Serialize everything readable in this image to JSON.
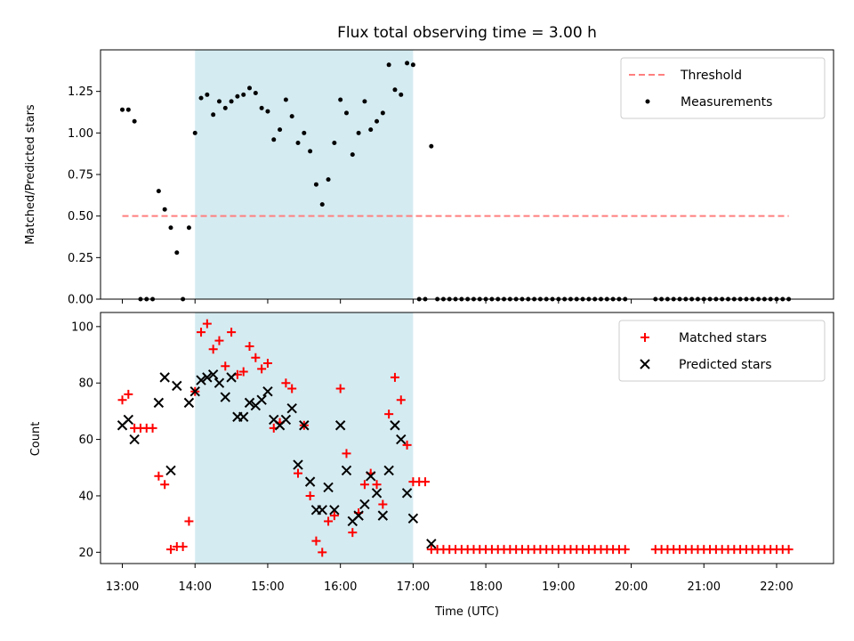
{
  "chart_data": [
    {
      "type": "scatter",
      "title": "Flux total observing time = 3.00 h",
      "xlabel": "",
      "ylabel": "Matched/Predicted stars",
      "xlim": [
        "12:42",
        "22:47"
      ],
      "ylim": [
        0,
        1.5
      ],
      "yticks": [
        "0.00",
        "0.25",
        "0.50",
        "0.75",
        "1.00",
        "1.25"
      ],
      "shaded_region": {
        "start": "14:00",
        "end": "17:00",
        "color": "#d4ebf1"
      },
      "threshold": {
        "name": "Threshold",
        "value": 0.5,
        "x_start": "13:00",
        "x_end": "22:10",
        "color": "#ff7f7f",
        "style": "dashed"
      },
      "series": [
        {
          "name": "Measurements",
          "color": "#000000",
          "marker": "dot",
          "points": [
            [
              "13:00",
              1.14
            ],
            [
              "13:05",
              1.14
            ],
            [
              "13:10",
              1.07
            ],
            [
              "13:15",
              0
            ],
            [
              "13:20",
              0
            ],
            [
              "13:25",
              0
            ],
            [
              "13:30",
              0.65
            ],
            [
              "13:35",
              0.54
            ],
            [
              "13:40",
              0.43
            ],
            [
              "13:45",
              0.28
            ],
            [
              "13:50",
              0
            ],
            [
              "13:55",
              0.43
            ],
            [
              "14:00",
              1.0
            ],
            [
              "14:05",
              1.21
            ],
            [
              "14:10",
              1.23
            ],
            [
              "14:15",
              1.11
            ],
            [
              "14:20",
              1.19
            ],
            [
              "14:25",
              1.15
            ],
            [
              "14:30",
              1.19
            ],
            [
              "14:35",
              1.22
            ],
            [
              "14:40",
              1.23
            ],
            [
              "14:45",
              1.27
            ],
            [
              "14:50",
              1.24
            ],
            [
              "14:55",
              1.15
            ],
            [
              "15:00",
              1.13
            ],
            [
              "15:05",
              0.96
            ],
            [
              "15:10",
              1.02
            ],
            [
              "15:15",
              1.2
            ],
            [
              "15:20",
              1.1
            ],
            [
              "15:25",
              0.94
            ],
            [
              "15:30",
              1.0
            ],
            [
              "15:35",
              0.89
            ],
            [
              "15:40",
              0.69
            ],
            [
              "15:45",
              0.57
            ],
            [
              "15:50",
              0.72
            ],
            [
              "15:55",
              0.94
            ],
            [
              "16:00",
              1.2
            ],
            [
              "16:05",
              1.12
            ],
            [
              "16:10",
              0.87
            ],
            [
              "16:15",
              1.0
            ],
            [
              "16:20",
              1.19
            ],
            [
              "16:25",
              1.02
            ],
            [
              "16:30",
              1.07
            ],
            [
              "16:35",
              1.12
            ],
            [
              "16:40",
              1.41
            ],
            [
              "16:45",
              1.26
            ],
            [
              "16:50",
              1.23
            ],
            [
              "16:55",
              1.42
            ],
            [
              "17:00",
              1.41
            ],
            [
              "17:05",
              0
            ],
            [
              "17:10",
              0
            ],
            [
              "17:15",
              0.92
            ],
            [
              "17:20",
              0
            ],
            [
              "17:25",
              0
            ],
            [
              "17:30",
              0
            ],
            [
              "17:35",
              0
            ],
            [
              "17:40",
              0
            ],
            [
              "17:45",
              0
            ],
            [
              "17:50",
              0
            ],
            [
              "17:55",
              0
            ],
            [
              "18:00",
              0
            ],
            [
              "18:05",
              0
            ],
            [
              "18:10",
              0
            ],
            [
              "18:15",
              0
            ],
            [
              "18:20",
              0
            ],
            [
              "18:25",
              0
            ],
            [
              "18:30",
              0
            ],
            [
              "18:35",
              0
            ],
            [
              "18:40",
              0
            ],
            [
              "18:45",
              0
            ],
            [
              "18:50",
              0
            ],
            [
              "18:55",
              0
            ],
            [
              "19:00",
              0
            ],
            [
              "19:05",
              0
            ],
            [
              "19:10",
              0
            ],
            [
              "19:15",
              0
            ],
            [
              "19:20",
              0
            ],
            [
              "19:25",
              0
            ],
            [
              "19:30",
              0
            ],
            [
              "19:35",
              0
            ],
            [
              "19:40",
              0
            ],
            [
              "19:45",
              0
            ],
            [
              "19:50",
              0
            ],
            [
              "19:55",
              0
            ],
            [
              "20:20",
              0
            ],
            [
              "20:25",
              0
            ],
            [
              "20:30",
              0
            ],
            [
              "20:35",
              0
            ],
            [
              "20:40",
              0
            ],
            [
              "20:45",
              0
            ],
            [
              "20:50",
              0
            ],
            [
              "20:55",
              0
            ],
            [
              "21:00",
              0
            ],
            [
              "21:05",
              0
            ],
            [
              "21:10",
              0
            ],
            [
              "21:15",
              0
            ],
            [
              "21:20",
              0
            ],
            [
              "21:25",
              0
            ],
            [
              "21:30",
              0
            ],
            [
              "21:35",
              0
            ],
            [
              "21:40",
              0
            ],
            [
              "21:45",
              0
            ],
            [
              "21:50",
              0
            ],
            [
              "21:55",
              0
            ],
            [
              "22:00",
              0
            ],
            [
              "22:05",
              0
            ],
            [
              "22:10",
              0
            ]
          ]
        }
      ],
      "legend": [
        "Threshold",
        "Measurements"
      ],
      "legend_position": "top-right"
    },
    {
      "type": "scatter",
      "title": "",
      "xlabel": "Time (UTC)",
      "ylabel": "Count",
      "xlim": [
        "12:42",
        "22:47"
      ],
      "ylim": [
        16,
        105
      ],
      "xticks": [
        "13:00",
        "14:00",
        "15:00",
        "16:00",
        "17:00",
        "18:00",
        "19:00",
        "20:00",
        "21:00",
        "22:00"
      ],
      "yticks": [
        20,
        40,
        60,
        80,
        100
      ],
      "shaded_region": {
        "start": "14:00",
        "end": "17:00",
        "color": "#d4ebf1"
      },
      "series": [
        {
          "name": "Matched stars",
          "color": "#ff0000",
          "marker": "plus",
          "points": [
            [
              "13:00",
              74
            ],
            [
              "13:05",
              76
            ],
            [
              "13:10",
              64
            ],
            [
              "13:15",
              64
            ],
            [
              "13:20",
              64
            ],
            [
              "13:25",
              64
            ],
            [
              "13:30",
              47
            ],
            [
              "13:35",
              44
            ],
            [
              "13:40",
              21
            ],
            [
              "13:45",
              22
            ],
            [
              "13:50",
              22
            ],
            [
              "13:55",
              31
            ],
            [
              "14:00",
              77
            ],
            [
              "14:05",
              98
            ],
            [
              "14:10",
              101
            ],
            [
              "14:15",
              92
            ],
            [
              "14:20",
              95
            ],
            [
              "14:25",
              86
            ],
            [
              "14:30",
              98
            ],
            [
              "14:35",
              83
            ],
            [
              "14:40",
              84
            ],
            [
              "14:45",
              93
            ],
            [
              "14:50",
              89
            ],
            [
              "14:55",
              85
            ],
            [
              "15:00",
              87
            ],
            [
              "15:05",
              64
            ],
            [
              "15:10",
              66
            ],
            [
              "15:15",
              80
            ],
            [
              "15:20",
              78
            ],
            [
              "15:25",
              48
            ],
            [
              "15:30",
              65
            ],
            [
              "15:35",
              40
            ],
            [
              "15:40",
              24
            ],
            [
              "15:45",
              20
            ],
            [
              "15:50",
              31
            ],
            [
              "15:55",
              33
            ],
            [
              "16:00",
              78
            ],
            [
              "16:05",
              55
            ],
            [
              "16:10",
              27
            ],
            [
              "16:15",
              34
            ],
            [
              "16:20",
              44
            ],
            [
              "16:25",
              48
            ],
            [
              "16:30",
              44
            ],
            [
              "16:35",
              37
            ],
            [
              "16:40",
              69
            ],
            [
              "16:45",
              82
            ],
            [
              "16:50",
              74
            ],
            [
              "16:55",
              58
            ],
            [
              "17:00",
              45
            ],
            [
              "17:05",
              45
            ],
            [
              "17:10",
              45
            ],
            [
              "17:15",
              21
            ],
            [
              "17:20",
              21
            ],
            [
              "17:25",
              21
            ],
            [
              "17:30",
              21
            ],
            [
              "17:35",
              21
            ],
            [
              "17:40",
              21
            ],
            [
              "17:45",
              21
            ],
            [
              "17:50",
              21
            ],
            [
              "17:55",
              21
            ],
            [
              "18:00",
              21
            ],
            [
              "18:05",
              21
            ],
            [
              "18:10",
              21
            ],
            [
              "18:15",
              21
            ],
            [
              "18:20",
              21
            ],
            [
              "18:25",
              21
            ],
            [
              "18:30",
              21
            ],
            [
              "18:35",
              21
            ],
            [
              "18:40",
              21
            ],
            [
              "18:45",
              21
            ],
            [
              "18:50",
              21
            ],
            [
              "18:55",
              21
            ],
            [
              "19:00",
              21
            ],
            [
              "19:05",
              21
            ],
            [
              "19:10",
              21
            ],
            [
              "19:15",
              21
            ],
            [
              "19:20",
              21
            ],
            [
              "19:25",
              21
            ],
            [
              "19:30",
              21
            ],
            [
              "19:35",
              21
            ],
            [
              "19:40",
              21
            ],
            [
              "19:45",
              21
            ],
            [
              "19:50",
              21
            ],
            [
              "19:55",
              21
            ],
            [
              "20:20",
              21
            ],
            [
              "20:25",
              21
            ],
            [
              "20:30",
              21
            ],
            [
              "20:35",
              21
            ],
            [
              "20:40",
              21
            ],
            [
              "20:45",
              21
            ],
            [
              "20:50",
              21
            ],
            [
              "20:55",
              21
            ],
            [
              "21:00",
              21
            ],
            [
              "21:05",
              21
            ],
            [
              "21:10",
              21
            ],
            [
              "21:15",
              21
            ],
            [
              "21:20",
              21
            ],
            [
              "21:25",
              21
            ],
            [
              "21:30",
              21
            ],
            [
              "21:35",
              21
            ],
            [
              "21:40",
              21
            ],
            [
              "21:45",
              21
            ],
            [
              "21:50",
              21
            ],
            [
              "21:55",
              21
            ],
            [
              "22:00",
              21
            ],
            [
              "22:05",
              21
            ],
            [
              "22:10",
              21
            ]
          ]
        },
        {
          "name": "Predicted stars",
          "color": "#000000",
          "marker": "x",
          "points": [
            [
              "13:00",
              65
            ],
            [
              "13:05",
              67
            ],
            [
              "13:10",
              60
            ],
            [
              "13:30",
              73
            ],
            [
              "13:35",
              82
            ],
            [
              "13:40",
              49
            ],
            [
              "13:45",
              79
            ],
            [
              "13:55",
              73
            ],
            [
              "14:00",
              77
            ],
            [
              "14:05",
              81
            ],
            [
              "14:10",
              82
            ],
            [
              "14:15",
              83
            ],
            [
              "14:20",
              80
            ],
            [
              "14:25",
              75
            ],
            [
              "14:30",
              82
            ],
            [
              "14:35",
              68
            ],
            [
              "14:40",
              68
            ],
            [
              "14:45",
              73
            ],
            [
              "14:50",
              72
            ],
            [
              "14:55",
              74
            ],
            [
              "15:00",
              77
            ],
            [
              "15:05",
              67
            ],
            [
              "15:10",
              65
            ],
            [
              "15:15",
              67
            ],
            [
              "15:20",
              71
            ],
            [
              "15:25",
              51
            ],
            [
              "15:30",
              65
            ],
            [
              "15:35",
              45
            ],
            [
              "15:40",
              35
            ],
            [
              "15:45",
              35
            ],
            [
              "15:50",
              43
            ],
            [
              "15:55",
              35
            ],
            [
              "16:00",
              65
            ],
            [
              "16:05",
              49
            ],
            [
              "16:10",
              31
            ],
            [
              "16:15",
              33
            ],
            [
              "16:20",
              37
            ],
            [
              "16:25",
              47
            ],
            [
              "16:30",
              41
            ],
            [
              "16:35",
              33
            ],
            [
              "16:40",
              49
            ],
            [
              "16:45",
              65
            ],
            [
              "16:50",
              60
            ],
            [
              "16:55",
              41
            ],
            [
              "17:00",
              32
            ],
            [
              "17:15",
              23
            ]
          ]
        }
      ],
      "legend": [
        "Matched stars",
        "Predicted stars"
      ],
      "legend_position": "top-right"
    }
  ]
}
